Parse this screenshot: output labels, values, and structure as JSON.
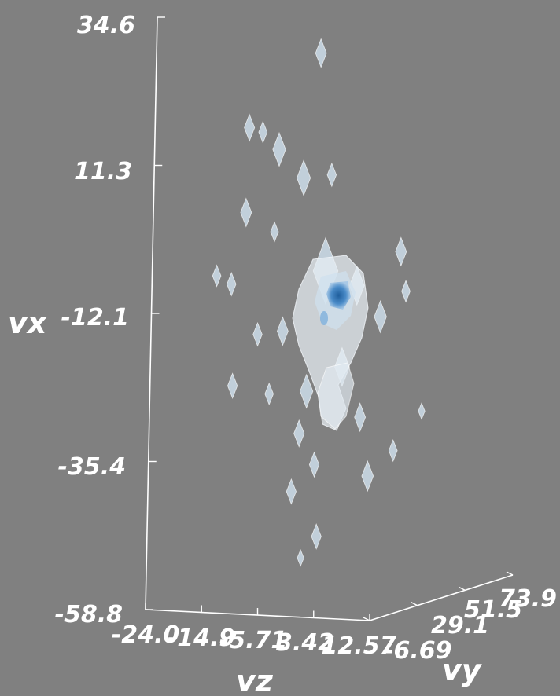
{
  "chart_data": {
    "type": "volume",
    "title": "",
    "axes": {
      "vx": {
        "label": "vx",
        "range": [
          -58.8,
          34.6
        ],
        "ticks": [
          "-58.8",
          "-35.4",
          "-12.1",
          "11.3",
          "34.6"
        ]
      },
      "vz": {
        "label": "vz",
        "range": [
          -24.0,
          12.57
        ],
        "ticks": [
          "-24.0",
          "-14.9",
          "-5.71",
          "3.42",
          "12.57"
        ]
      },
      "vy": {
        "label": "vy",
        "range": [
          -6.69,
          73.9
        ],
        "ticks": [
          "-6.69",
          "29.1",
          "51.5",
          "73.9"
        ]
      }
    },
    "isosurface_colors": [
      "#ffffff",
      "#cfe0ee",
      "#8fb8e0",
      "#3a78b8"
    ],
    "points": [
      {
        "vz": -2.0,
        "vy": 10.0,
        "vx": 28.5,
        "size": 1.0
      },
      {
        "vz": -14.0,
        "vy": 12.0,
        "vx": 16.0,
        "size": 0.9
      },
      {
        "vz": -11.5,
        "vy": 11.0,
        "vx": 15.5,
        "size": 0.6
      },
      {
        "vz": -8.5,
        "vy": 10.0,
        "vx": 13.0,
        "size": 1.3
      },
      {
        "vz": -5.0,
        "vy": 12.0,
        "vx": 8.5,
        "size": 1.4
      },
      {
        "vz": -1.0,
        "vy": 14.0,
        "vx": 9.0,
        "size": 0.7
      },
      {
        "vz": -16.0,
        "vy": 18.0,
        "vx": 2.0,
        "size": 1.0
      },
      {
        "vz": -9.0,
        "vy": 10.0,
        "vx": 0.0,
        "size": 0.5
      },
      {
        "vz": -17.0,
        "vy": 14.0,
        "vx": -9.0,
        "size": 0.7
      },
      {
        "vz": -20.0,
        "vy": 16.0,
        "vx": -8.0,
        "size": 0.6
      },
      {
        "vz": -4.0,
        "vy": 22.0,
        "vx": -7.0,
        "size": 3.2
      },
      {
        "vz": 0.0,
        "vy": 26.0,
        "vx": -9.5,
        "size": 1.6
      },
      {
        "vz": 4.5,
        "vy": 24.0,
        "vx": -14.0,
        "size": 1.2
      },
      {
        "vz": 6.5,
        "vy": 28.0,
        "vx": -4.0,
        "size": 1.0
      },
      {
        "vz": 8.0,
        "vy": 26.0,
        "vx": -10.0,
        "size": 0.6
      },
      {
        "vz": -12.0,
        "vy": 12.0,
        "vx": -16.5,
        "size": 0.7
      },
      {
        "vz": -8.5,
        "vy": 14.0,
        "vx": -16.0,
        "size": 1.0
      },
      {
        "vz": -5.0,
        "vy": 16.0,
        "vx": -25.5,
        "size": 1.3
      },
      {
        "vz": -1.0,
        "vy": 22.0,
        "vx": -22.0,
        "size": 1.6
      },
      {
        "vz": 1.5,
        "vy": 24.0,
        "vx": -30.0,
        "size": 1.0
      },
      {
        "vz": -16.5,
        "vy": 14.0,
        "vx": -25.0,
        "size": 0.8
      },
      {
        "vz": -10.5,
        "vy": 14.0,
        "vx": -26.0,
        "size": 0.6
      },
      {
        "vz": -5.5,
        "vy": 14.0,
        "vx": -32.0,
        "size": 0.9
      },
      {
        "vz": -3.5,
        "vy": 16.0,
        "vx": -37.0,
        "size": 0.8
      },
      {
        "vz": -6.0,
        "vy": 12.0,
        "vx": -41.0,
        "size": 0.8
      },
      {
        "vz": 3.5,
        "vy": 22.0,
        "vx": -39.0,
        "size": 1.1
      },
      {
        "vz": -3.5,
        "vy": 18.0,
        "vx": -48.5,
        "size": 0.8
      },
      {
        "vz": 7.0,
        "vy": 24.0,
        "vx": -35.0,
        "size": 0.6
      },
      {
        "vz": -6.0,
        "vy": 18.0,
        "vx": -52.0,
        "size": 0.3
      },
      {
        "vz": 7.5,
        "vy": 38.0,
        "vx": -30.0,
        "size": 0.3
      }
    ]
  }
}
